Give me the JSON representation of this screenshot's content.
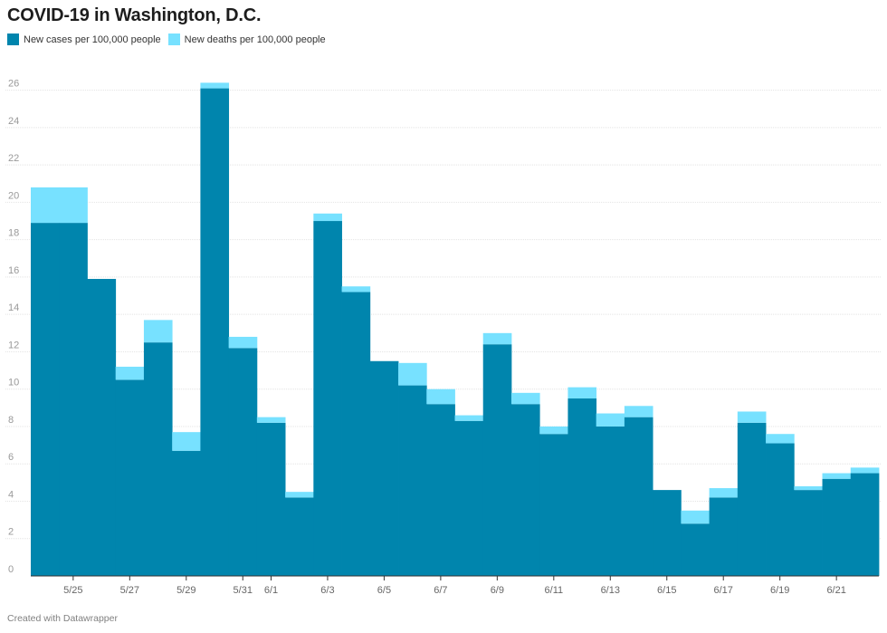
{
  "title": "COVID-19 in Washington, D.C.",
  "footer": "Created with Datawrapper",
  "colors": {
    "cases": "#0085ad",
    "deaths": "#77e1ff",
    "grid": "#e4e4e4",
    "axis": "#333333"
  },
  "legend": [
    {
      "label": "New cases per 100,000 people",
      "color": "#0085ad"
    },
    {
      "label": "New deaths per 100,000 people",
      "color": "#77e1ff"
    }
  ],
  "chart_data": {
    "type": "bar",
    "stacked": true,
    "categories": [
      "5/24",
      "5/25",
      "5/26",
      "5/27",
      "5/28",
      "5/29",
      "5/30",
      "5/31",
      "6/1",
      "6/2",
      "6/3",
      "6/4",
      "6/5",
      "6/6",
      "6/7",
      "6/8",
      "6/9",
      "6/10",
      "6/11",
      "6/12",
      "6/13",
      "6/14",
      "6/15",
      "6/16",
      "6/17",
      "6/18",
      "6/19",
      "6/20",
      "6/21",
      "6/22"
    ],
    "x_tick_labels": [
      "5/25",
      "5/27",
      "5/29",
      "5/31",
      "6/1",
      "6/3",
      "6/5",
      "6/7",
      "6/9",
      "6/11",
      "6/13",
      "6/15",
      "6/17",
      "6/19",
      "6/21"
    ],
    "series": [
      {
        "name": "New cases per 100,000 people",
        "values": [
          18.9,
          18.9,
          15.9,
          10.5,
          12.5,
          6.7,
          26.1,
          12.2,
          8.2,
          4.2,
          19.0,
          15.2,
          11.5,
          10.2,
          9.2,
          8.3,
          12.4,
          9.2,
          7.6,
          9.5,
          8.0,
          8.5,
          4.6,
          2.8,
          4.2,
          8.2,
          7.1,
          4.6,
          5.2,
          5.5
        ]
      },
      {
        "name": "New deaths per 100,000 people",
        "values": [
          1.9,
          1.9,
          0.0,
          0.7,
          1.2,
          1.0,
          0.3,
          0.6,
          0.3,
          0.3,
          0.4,
          0.3,
          0.0,
          1.2,
          0.8,
          0.3,
          0.6,
          0.6,
          0.4,
          0.6,
          0.7,
          0.6,
          0.0,
          0.7,
          0.5,
          0.6,
          0.5,
          0.2,
          0.3,
          0.3
        ]
      }
    ],
    "ylim": [
      0,
      27
    ],
    "yticks": [
      0,
      2,
      4,
      6,
      8,
      10,
      12,
      14,
      16,
      18,
      20,
      22,
      24,
      26
    ],
    "grid": true,
    "legend_position": "top-left",
    "xlabel": "",
    "ylabel": ""
  }
}
